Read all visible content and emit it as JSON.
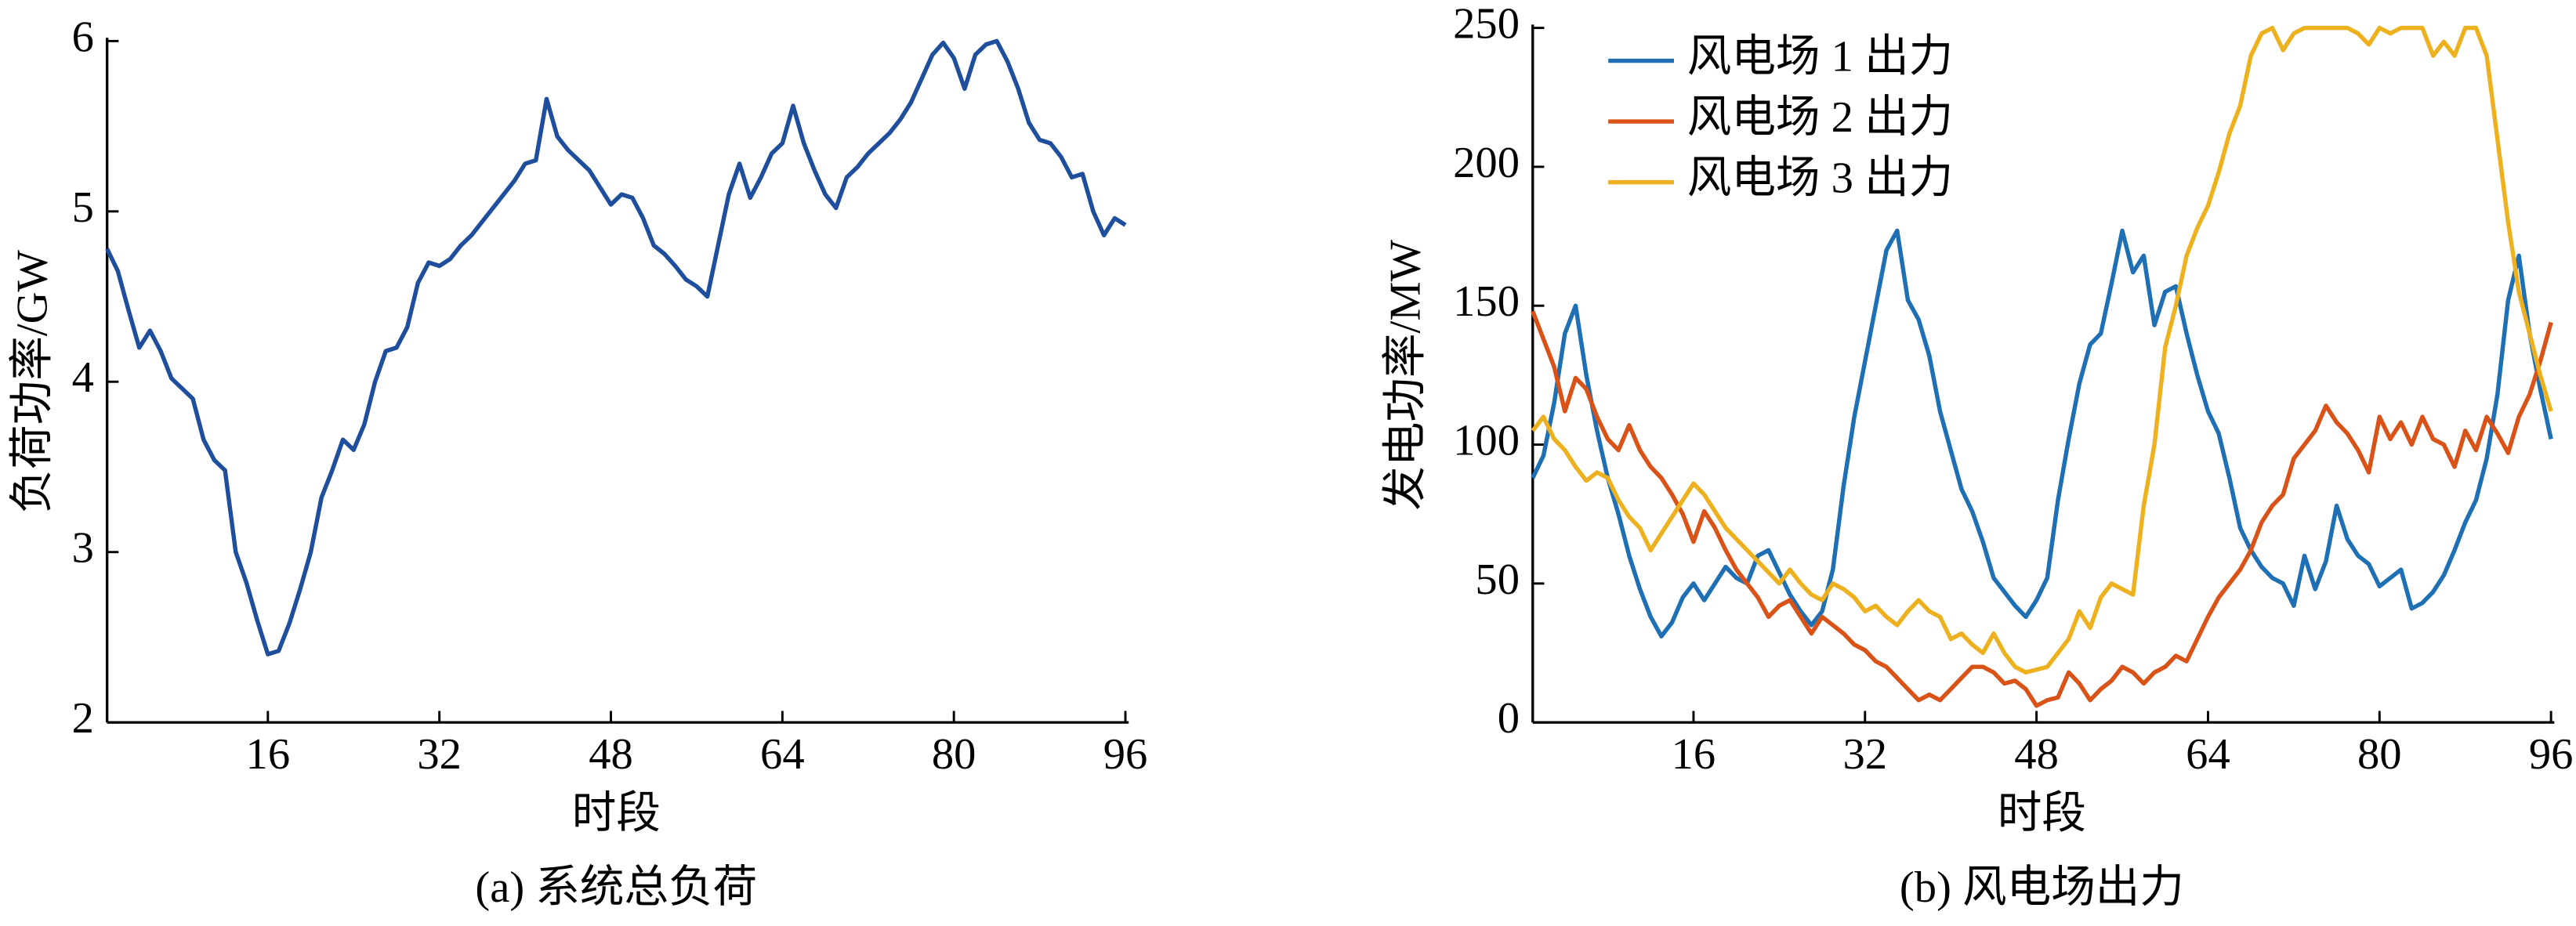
{
  "chart_data": [
    {
      "type": "line",
      "title": "(a)  系统总负荷",
      "xlabel": "时段",
      "ylabel": "负荷功率/GW",
      "xlim": [
        1,
        96
      ],
      "xticks": [
        16,
        32,
        48,
        64,
        80,
        96
      ],
      "ylim": [
        2,
        6
      ],
      "yticks": [
        2,
        3,
        4,
        5,
        6
      ],
      "x": [
        1,
        2,
        3,
        4,
        5,
        6,
        7,
        8,
        9,
        10,
        11,
        12,
        13,
        14,
        15,
        16,
        17,
        18,
        19,
        20,
        21,
        22,
        23,
        24,
        25,
        26,
        27,
        28,
        29,
        30,
        31,
        32,
        33,
        34,
        35,
        36,
        37,
        38,
        39,
        40,
        41,
        42,
        43,
        44,
        45,
        46,
        47,
        48,
        49,
        50,
        51,
        52,
        53,
        54,
        55,
        56,
        57,
        58,
        59,
        60,
        61,
        62,
        63,
        64,
        65,
        66,
        67,
        68,
        69,
        70,
        71,
        72,
        73,
        74,
        75,
        76,
        77,
        78,
        79,
        80,
        81,
        82,
        83,
        84,
        85,
        86,
        87,
        88,
        89,
        90,
        91,
        92,
        93,
        94,
        95,
        96
      ],
      "series": [
        {
          "name": "系统总负荷",
          "color": "#1f4e9c",
          "values": [
            4.78,
            4.65,
            4.42,
            4.2,
            4.3,
            4.18,
            4.02,
            3.96,
            3.9,
            3.66,
            3.54,
            3.48,
            3.0,
            2.82,
            2.6,
            2.4,
            2.42,
            2.58,
            2.78,
            3.0,
            3.32,
            3.48,
            3.66,
            3.6,
            3.75,
            4.0,
            4.18,
            4.2,
            4.32,
            4.58,
            4.7,
            4.68,
            4.72,
            4.8,
            4.86,
            4.94,
            5.02,
            5.1,
            5.18,
            5.28,
            5.3,
            5.66,
            5.44,
            5.36,
            5.3,
            5.24,
            5.14,
            5.04,
            5.1,
            5.08,
            4.96,
            4.8,
            4.75,
            4.68,
            4.6,
            4.56,
            4.5,
            4.8,
            5.1,
            5.28,
            5.08,
            5.2,
            5.34,
            5.4,
            5.62,
            5.4,
            5.24,
            5.1,
            5.02,
            5.2,
            5.26,
            5.34,
            5.4,
            5.46,
            5.54,
            5.64,
            5.78,
            5.92,
            5.99,
            5.9,
            5.72,
            5.92,
            5.98,
            6.0,
            5.88,
            5.72,
            5.52,
            5.42,
            5.4,
            5.32,
            5.2,
            5.22,
            5.0,
            4.86,
            4.96,
            4.92
          ]
        }
      ]
    },
    {
      "type": "line",
      "title": "(b)  风电场出力",
      "xlabel": "时段",
      "ylabel": "发电功率/MW",
      "xlim": [
        1,
        96
      ],
      "xticks": [
        16,
        32,
        48,
        64,
        80,
        96
      ],
      "ylim": [
        0,
        250
      ],
      "yticks": [
        0,
        50,
        100,
        150,
        200,
        250
      ],
      "legend": "upper left",
      "x": [
        1,
        2,
        3,
        4,
        5,
        6,
        7,
        8,
        9,
        10,
        11,
        12,
        13,
        14,
        15,
        16,
        17,
        18,
        19,
        20,
        21,
        22,
        23,
        24,
        25,
        26,
        27,
        28,
        29,
        30,
        31,
        32,
        33,
        34,
        35,
        36,
        37,
        38,
        39,
        40,
        41,
        42,
        43,
        44,
        45,
        46,
        47,
        48,
        49,
        50,
        51,
        52,
        53,
        54,
        55,
        56,
        57,
        58,
        59,
        60,
        61,
        62,
        63,
        64,
        65,
        66,
        67,
        68,
        69,
        70,
        71,
        72,
        73,
        74,
        75,
        76,
        77,
        78,
        79,
        80,
        81,
        82,
        83,
        84,
        85,
        86,
        87,
        88,
        89,
        90,
        91,
        92,
        93,
        94,
        95,
        96
      ],
      "series": [
        {
          "name": "风电场 1 出力",
          "color": "#1f6fb4",
          "values": [
            88,
            96,
            115,
            140,
            150,
            125,
            105,
            88,
            75,
            60,
            48,
            38,
            31,
            36,
            45,
            50,
            44,
            50,
            56,
            52,
            50,
            60,
            62,
            54,
            46,
            40,
            35,
            40,
            55,
            85,
            110,
            130,
            150,
            170,
            177,
            152,
            145,
            132,
            112,
            98,
            84,
            76,
            65,
            52,
            47,
            42,
            38,
            44,
            52,
            80,
            102,
            122,
            136,
            140,
            158,
            177,
            162,
            168,
            143,
            155,
            157,
            140,
            125,
            112,
            104,
            88,
            70,
            62,
            56,
            52,
            50,
            42,
            60,
            48,
            58,
            78,
            66,
            60,
            57,
            49,
            52,
            55,
            41,
            43,
            47,
            53,
            62,
            72,
            80,
            95,
            118,
            152,
            168,
            140,
            120,
            102
          ]
        },
        {
          "name": "风电场 2 出力",
          "color": "#d95319",
          "values": [
            148,
            138,
            128,
            112,
            124,
            120,
            110,
            102,
            98,
            107,
            98,
            92,
            88,
            82,
            75,
            65,
            76,
            70,
            62,
            55,
            50,
            45,
            38,
            42,
            44,
            38,
            32,
            38,
            35,
            32,
            28,
            26,
            22,
            20,
            16,
            12,
            8,
            10,
            8,
            12,
            16,
            20,
            20,
            18,
            14,
            15,
            12,
            6,
            8,
            9,
            18,
            14,
            8,
            12,
            15,
            20,
            18,
            14,
            18,
            20,
            24,
            22,
            30,
            38,
            45,
            50,
            55,
            62,
            72,
            78,
            82,
            95,
            100,
            105,
            114,
            108,
            104,
            98,
            90,
            110,
            102,
            108,
            100,
            110,
            102,
            100,
            92,
            105,
            98,
            110,
            104,
            97,
            110,
            118,
            130,
            144
          ]
        },
        {
          "name": "风电场 3 出力",
          "color": "#edb120",
          "values": [
            105,
            110,
            102,
            98,
            92,
            87,
            90,
            88,
            80,
            74,
            70,
            62,
            68,
            74,
            80,
            86,
            82,
            76,
            70,
            66,
            62,
            58,
            54,
            50,
            55,
            50,
            46,
            44,
            50,
            48,
            45,
            40,
            42,
            38,
            35,
            40,
            44,
            40,
            38,
            30,
            32,
            28,
            25,
            32,
            25,
            20,
            18,
            19,
            20,
            25,
            30,
            40,
            34,
            45,
            50,
            48,
            46,
            78,
            100,
            135,
            150,
            168,
            178,
            186,
            198,
            212,
            222,
            240,
            248,
            250,
            242,
            248,
            250,
            250,
            250,
            250,
            250,
            248,
            244,
            250,
            248,
            250,
            250,
            250,
            240,
            245,
            240,
            250,
            250,
            240,
            210,
            180,
            155,
            140,
            125,
            112
          ]
        }
      ]
    }
  ]
}
